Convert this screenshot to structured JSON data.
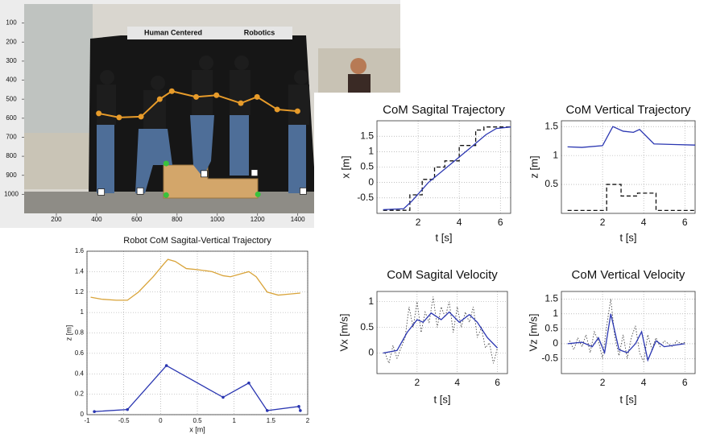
{
  "chart_data": [
    {
      "type": "image",
      "annotations": [
        "Human Centered",
        "Robotics"
      ],
      "xlim": [
        40,
        1910
      ],
      "ylim": [
        1100,
        0
      ],
      "xticks": [
        200,
        400,
        600,
        800,
        1000,
        1200,
        1400
      ],
      "yticks": [
        100,
        200,
        300,
        400,
        500,
        600,
        700,
        800,
        900,
        1000
      ],
      "grid": false,
      "series": [
        {
          "color": "#e79b2a",
          "style": "solid",
          "marker": "circle",
          "x": [
            411,
            512,
            621,
            714,
            774,
            895,
            996,
            1117,
            1198,
            1298,
            1399
          ],
          "values": [
            575,
            596,
            592,
            500,
            458,
            488,
            479,
            521,
            488,
            554,
            563
          ]
        },
        {
          "color": "#ffffff",
          "style": "none",
          "marker": "square",
          "x": [
            423,
            617,
            935,
            1185,
            1427
          ],
          "values": [
            988,
            983,
            892,
            887,
            983
          ]
        },
        {
          "color": "#39c23c",
          "style": "none",
          "marker": "circle",
          "x": [
            746,
            746,
            1202
          ],
          "values": [
            838,
            1004,
            1000
          ]
        }
      ]
    },
    {
      "type": "line",
      "title": "Robot CoM Sagital-Vertical Trajectory",
      "xlabel": "x [m]",
      "ylabel": "z [m]",
      "xlim": [
        -1,
        2
      ],
      "ylim": [
        0,
        1.6
      ],
      "xticks": [
        -1,
        -0.5,
        0,
        0.5,
        1,
        1.5,
        2
      ],
      "yticks": [
        0,
        0.2,
        0.4,
        0.6,
        0.8,
        1,
        1.2,
        1.4,
        1.6
      ],
      "grid": true,
      "series": [
        {
          "color": "#d9a43a",
          "style": "solid",
          "x": [
            -0.95,
            -0.8,
            -0.6,
            -0.45,
            -0.3,
            -0.1,
            0.05,
            0.1,
            0.2,
            0.35,
            0.5,
            0.7,
            0.85,
            0.95,
            1.1,
            1.2,
            1.3,
            1.45,
            1.6,
            1.75,
            1.9
          ],
          "values": [
            1.15,
            1.13,
            1.12,
            1.12,
            1.2,
            1.35,
            1.48,
            1.52,
            1.5,
            1.43,
            1.42,
            1.4,
            1.36,
            1.35,
            1.38,
            1.4,
            1.35,
            1.2,
            1.17,
            1.18,
            1.19
          ]
        },
        {
          "color": "#2a36b1",
          "style": "solid",
          "marker": "dot",
          "x": [
            -0.9,
            -0.45,
            0.08,
            0.85,
            1.2,
            1.45,
            1.88,
            1.9
          ],
          "values": [
            0.03,
            0.05,
            0.48,
            0.17,
            0.31,
            0.04,
            0.08,
            0.04
          ]
        }
      ]
    },
    {
      "type": "line",
      "title": "CoM Sagital Trajectory",
      "xlabel": "t [s]",
      "ylabel": "x [m]",
      "xlim": [
        0,
        6.5
      ],
      "ylim": [
        -1,
        2
      ],
      "xticks": [
        2,
        4,
        6
      ],
      "yticks": [
        -0.5,
        0,
        0.5,
        1,
        1.5
      ],
      "grid": true,
      "series": [
        {
          "color": "#111111",
          "style": "dashed",
          "x": [
            0.3,
            1.6,
            1.6,
            2.2,
            2.2,
            2.8,
            2.8,
            3.3,
            3.3,
            4.0,
            4.0,
            4.8,
            4.8,
            5.2,
            5.2,
            6.5
          ],
          "values": [
            -0.9,
            -0.9,
            -0.4,
            -0.4,
            0.1,
            0.1,
            0.5,
            0.5,
            0.7,
            0.7,
            1.2,
            1.2,
            1.7,
            1.7,
            1.8,
            1.8
          ]
        },
        {
          "color": "#2a36b1",
          "style": "solid",
          "x": [
            0.3,
            1.3,
            1.7,
            2.5,
            3.5,
            4.5,
            5.3,
            5.8,
            6.5
          ],
          "values": [
            -0.88,
            -0.85,
            -0.6,
            0,
            0.55,
            1.1,
            1.55,
            1.75,
            1.8
          ]
        }
      ]
    },
    {
      "type": "line",
      "title": "CoM Vertical Trajectory",
      "xlabel": "t [s]",
      "ylabel": "z [m]",
      "xlim": [
        0,
        6.5
      ],
      "ylim": [
        0,
        1.6
      ],
      "xticks": [
        2,
        4,
        6
      ],
      "yticks": [
        0.5,
        1,
        1.5
      ],
      "grid": true,
      "series": [
        {
          "color": "#111111",
          "style": "dashed",
          "x": [
            0.3,
            2.2,
            2.2,
            2.9,
            2.9,
            3.7,
            3.7,
            4.6,
            4.6,
            6.5
          ],
          "values": [
            0.05,
            0.05,
            0.5,
            0.5,
            0.3,
            0.3,
            0.35,
            0.35,
            0.05,
            0.05
          ]
        },
        {
          "color": "#2a36b1",
          "style": "solid",
          "x": [
            0.3,
            1.0,
            2.0,
            2.5,
            3.0,
            3.5,
            3.8,
            4.5,
            5.5,
            6.5
          ],
          "values": [
            1.15,
            1.14,
            1.17,
            1.5,
            1.42,
            1.4,
            1.45,
            1.2,
            1.19,
            1.18
          ]
        }
      ]
    },
    {
      "type": "line",
      "title": "CoM Sagital Velocity",
      "xlabel": "t [s]",
      "ylabel": "Vx [m/s]",
      "xlim": [
        0,
        6.5
      ],
      "ylim": [
        -0.4,
        1.2
      ],
      "xticks": [
        2,
        4,
        6
      ],
      "yticks": [
        0,
        0.5,
        1
      ],
      "grid": true,
      "series": [
        {
          "color": "#333333",
          "style": "dotted",
          "x": [
            0.4,
            0.6,
            0.8,
            1.0,
            1.2,
            1.4,
            1.6,
            1.8,
            2.0,
            2.2,
            2.4,
            2.6,
            2.8,
            3.0,
            3.2,
            3.4,
            3.6,
            3.8,
            4.0,
            4.2,
            4.4,
            4.6,
            4.8,
            5.0,
            5.2,
            5.4,
            5.6,
            5.8,
            6.0
          ],
          "values": [
            0,
            -0.2,
            0.15,
            -0.1,
            0.1,
            0.3,
            0.9,
            0.5,
            1.0,
            0.4,
            0.8,
            0.6,
            1.1,
            0.5,
            0.9,
            0.7,
            1.0,
            0.4,
            0.9,
            0.5,
            0.8,
            0.6,
            0.9,
            0.3,
            0.5,
            0.1,
            0.2,
            -0.2,
            0.1
          ]
        },
        {
          "color": "#2a36b1",
          "style": "solid",
          "x": [
            0.3,
            1.0,
            1.5,
            2.0,
            2.3,
            2.7,
            3.2,
            3.6,
            4.1,
            4.6,
            5.0,
            5.5,
            6.0
          ],
          "values": [
            0,
            0.05,
            0.4,
            0.65,
            0.6,
            0.78,
            0.65,
            0.8,
            0.6,
            0.75,
            0.6,
            0.3,
            0.1
          ]
        }
      ]
    },
    {
      "type": "line",
      "title": "CoM Vertical Velocity",
      "xlabel": "t [s]",
      "ylabel": "Vz [m/s]",
      "xlim": [
        0,
        6.5
      ],
      "ylim": [
        -1,
        1.75
      ],
      "xticks": [
        2,
        4,
        6
      ],
      "yticks": [
        -0.5,
        0,
        0.5,
        1,
        1.5
      ],
      "grid": true,
      "series": [
        {
          "color": "#333333",
          "style": "dotted",
          "x": [
            0.4,
            0.6,
            0.8,
            1.0,
            1.2,
            1.4,
            1.6,
            1.8,
            2.0,
            2.2,
            2.4,
            2.6,
            2.8,
            3.0,
            3.2,
            3.4,
            3.6,
            3.8,
            4.0,
            4.2,
            4.4,
            4.6,
            4.8,
            5.0,
            5.2,
            5.4,
            5.6,
            5.8,
            6.0
          ],
          "values": [
            0.1,
            -0.2,
            0.2,
            -0.1,
            0.3,
            -0.3,
            0.4,
            0.1,
            -0.5,
            0.6,
            1.5,
            0.2,
            -0.4,
            0.3,
            -0.5,
            0.2,
            0.6,
            -0.3,
            -0.6,
            0.3,
            -0.2,
            0.2,
            -0.1,
            0.1,
            0,
            -0.1,
            0.1,
            0,
            0.05
          ]
        },
        {
          "color": "#2a36b1",
          "style": "solid",
          "x": [
            0.3,
            1.0,
            1.5,
            1.8,
            2.1,
            2.4,
            2.8,
            3.2,
            3.6,
            3.9,
            4.2,
            4.6,
            5.0,
            6.0
          ],
          "values": [
            0,
            0.05,
            -0.1,
            0.2,
            -0.3,
            1,
            -0.2,
            -0.3,
            0,
            0.4,
            -0.55,
            0.1,
            -0.1,
            0
          ]
        }
      ]
    }
  ]
}
